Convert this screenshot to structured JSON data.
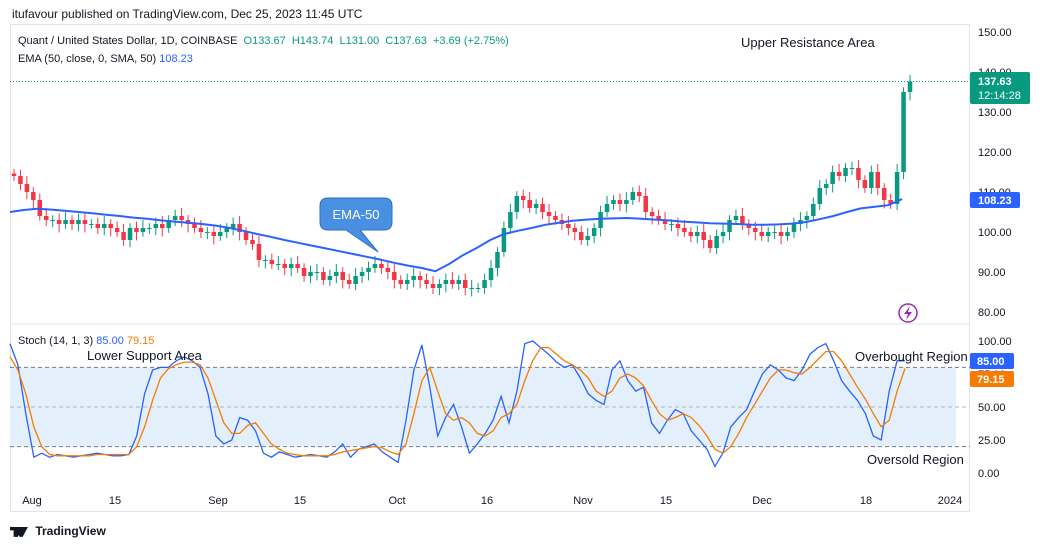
{
  "header": {
    "publish_line": "itufavour published on TradingView.com, Dec 25, 2023 11:45 UTC"
  },
  "symbol": {
    "name": "Quant / United States Dollar, 1D, COINBASE",
    "open": "O133.67",
    "high": "H143.74",
    "low": "L131.00",
    "close": "C137.63",
    "change": "+3.69 (+2.75%)"
  },
  "ema": {
    "label": "EMA (50, close, 0, SMA, 50)",
    "value": "108.23"
  },
  "stoch": {
    "label": "Stoch (14, 1, 3)",
    "k": "85.00",
    "d": "79.15"
  },
  "price_badge": {
    "price": "137.63",
    "countdown": "12:14:28"
  },
  "ema_badge": "108.23",
  "stoch_badges": {
    "k": "85.00",
    "d": "79.15"
  },
  "annotations": {
    "upper": "Upper Resistance Area",
    "ema_callout": "EMA-50",
    "lower": "Lower Support Area",
    "overbought": "Overbought Region",
    "oversold": "Oversold Region"
  },
  "footer": "TradingView",
  "colors": {
    "up": "#089981",
    "down": "#f23645",
    "ema": "#2962ff",
    "k": "#2962ff",
    "d": "#f57c00",
    "band": "#e3f0fc",
    "callout": "#4a90e2"
  },
  "chart_data": [
    {
      "type": "candlestick",
      "ylim": [
        75,
        150
      ],
      "y_ticks": [
        "150.00",
        "140.00",
        "130.00",
        "120.00",
        "110.00",
        "100.00",
        "90.00",
        "80.00"
      ],
      "x_ticks": [
        "Aug",
        "15",
        "Sep",
        "15",
        "Oct",
        "16",
        "Nov",
        "15",
        "Dec",
        "18",
        "2024"
      ],
      "series": [
        {
          "name": "Price",
          "values": [
            114,
            112,
            110,
            108,
            104,
            103,
            103,
            102,
            103,
            102,
            103,
            102,
            102,
            101,
            102,
            101,
            100,
            98,
            101,
            100,
            101,
            101,
            102,
            101,
            103,
            104,
            103,
            102,
            101,
            100,
            100,
            99,
            100,
            101,
            102,
            100,
            98,
            97,
            93,
            93,
            92,
            92,
            91,
            92,
            91,
            89,
            90,
            90,
            88,
            89,
            90,
            88,
            87,
            89,
            90,
            91,
            92,
            91,
            90,
            88,
            87,
            88,
            89,
            88,
            87,
            86,
            87,
            88,
            87,
            88,
            86,
            86,
            86,
            88,
            91,
            95,
            101,
            105,
            109,
            108,
            106,
            107,
            105,
            104,
            103,
            102,
            101,
            100,
            98,
            99,
            101,
            105,
            107,
            108,
            107,
            108,
            110,
            109,
            105,
            104,
            103,
            102,
            102,
            101,
            100,
            99,
            100,
            98,
            96,
            99,
            100,
            103,
            104,
            102,
            101,
            100,
            99,
            100,
            100,
            99,
            100,
            102,
            103,
            104,
            107,
            111,
            112,
            115,
            114,
            116,
            116,
            113,
            111,
            115,
            111,
            108,
            107,
            115,
            135,
            137.63
          ]
        },
        {
          "name": "EMA (50, close, 0, SMA, 50)",
          "values": [
            105,
            105.5,
            105.8,
            105.6,
            105.3,
            105,
            104.7,
            104.3,
            104,
            103.6,
            103.3,
            102.9,
            102.6,
            102.3,
            102,
            101.6,
            101,
            100.3,
            99.5,
            98.8,
            98,
            97.3,
            96.6,
            95.9,
            95.2,
            94.5,
            93.8,
            93.1,
            92.3,
            91.6,
            91,
            90.2,
            92,
            94.2,
            96,
            98,
            99.5,
            100.3,
            101,
            101.8,
            102.3,
            102.8,
            103.1,
            103.3,
            103.4,
            103.5,
            103.3,
            103.1,
            102.9,
            102.6,
            102.4,
            102.2,
            102.1,
            102,
            101.8,
            101.8,
            101.9,
            102.1,
            102.5,
            103.2,
            104,
            105,
            105.9,
            106.3,
            106.7,
            108.23
          ]
        }
      ]
    },
    {
      "type": "line",
      "ylim": [
        0,
        100
      ],
      "y_ticks": [
        "100.00",
        "75.00",
        "50.00",
        "25.00",
        "0.00"
      ],
      "reference_lines": [
        80,
        20
      ],
      "series": [
        {
          "name": "%K",
          "values": [
            98,
            82,
            45,
            12,
            15,
            12,
            14,
            13,
            12,
            13,
            14,
            15,
            14,
            13,
            13,
            14,
            28,
            60,
            78,
            80,
            80,
            85,
            88,
            85,
            80,
            60,
            28,
            22,
            25,
            42,
            40,
            32,
            15,
            12,
            16,
            14,
            12,
            13,
            14,
            13,
            12,
            16,
            22,
            12,
            18,
            20,
            22,
            16,
            12,
            8,
            40,
            78,
            97,
            65,
            28,
            42,
            52,
            35,
            15,
            22,
            30,
            40,
            58,
            38,
            62,
            98,
            100,
            95,
            90,
            84,
            80,
            82,
            72,
            60,
            55,
            52,
            78,
            85,
            70,
            62,
            65,
            38,
            30,
            40,
            48,
            45,
            32,
            25,
            18,
            5,
            15,
            35,
            42,
            48,
            62,
            75,
            82,
            78,
            72,
            70,
            78,
            90,
            95,
            98,
            85,
            70,
            62,
            55,
            45,
            28,
            25,
            62,
            85,
            85
          ]
        },
        {
          "name": "%D",
          "values": [
            88,
            78,
            60,
            35,
            20,
            14,
            13,
            13,
            13,
            13,
            13,
            14,
            14,
            14,
            14,
            14,
            20,
            35,
            55,
            72,
            79,
            82,
            84,
            84,
            82,
            72,
            55,
            38,
            30,
            30,
            36,
            38,
            30,
            22,
            18,
            15,
            14,
            13,
            13,
            13,
            13,
            14,
            16,
            17,
            18,
            19,
            20,
            19,
            16,
            14,
            22,
            45,
            70,
            80,
            62,
            45,
            40,
            42,
            38,
            30,
            28,
            32,
            42,
            45,
            52,
            70,
            85,
            95,
            95,
            90,
            85,
            82,
            78,
            72,
            62,
            58,
            62,
            72,
            75,
            72,
            66,
            55,
            45,
            40,
            42,
            45,
            42,
            36,
            28,
            18,
            15,
            20,
            30,
            42,
            52,
            62,
            72,
            78,
            78,
            76,
            75,
            80,
            86,
            92,
            92,
            85,
            75,
            65,
            56,
            45,
            35,
            40,
            62,
            79.15
          ]
        }
      ]
    }
  ]
}
